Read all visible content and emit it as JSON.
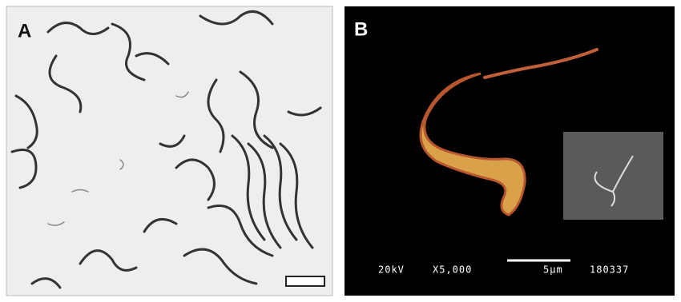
{
  "panels": [
    {
      "label": "A"
    },
    {
      "label": "B",
      "voltage": "20kV",
      "magnification": "X5,000",
      "scale": "5μm",
      "code": "180337"
    }
  ]
}
